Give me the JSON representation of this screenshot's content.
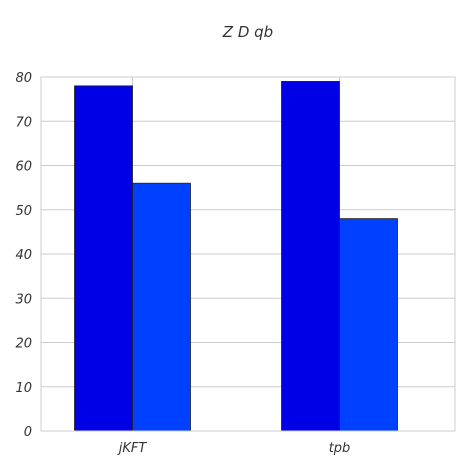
{
  "chart_data": {
    "type": "bar",
    "title": "Z D qb",
    "xlabel": "",
    "ylabel": "",
    "categories": [
      "jKFT",
      "tpb"
    ],
    "series": [
      {
        "values": [
          78,
          79
        ],
        "color": "#0000e6"
      },
      {
        "values": [
          56,
          48
        ],
        "color": "#0040ff"
      }
    ],
    "ylim": [
      0,
      80
    ],
    "yticks": [
      "0",
      "10",
      "20",
      "30",
      "40",
      "50",
      "60",
      "70",
      "80"
    ],
    "grid": true,
    "legend": "none"
  }
}
